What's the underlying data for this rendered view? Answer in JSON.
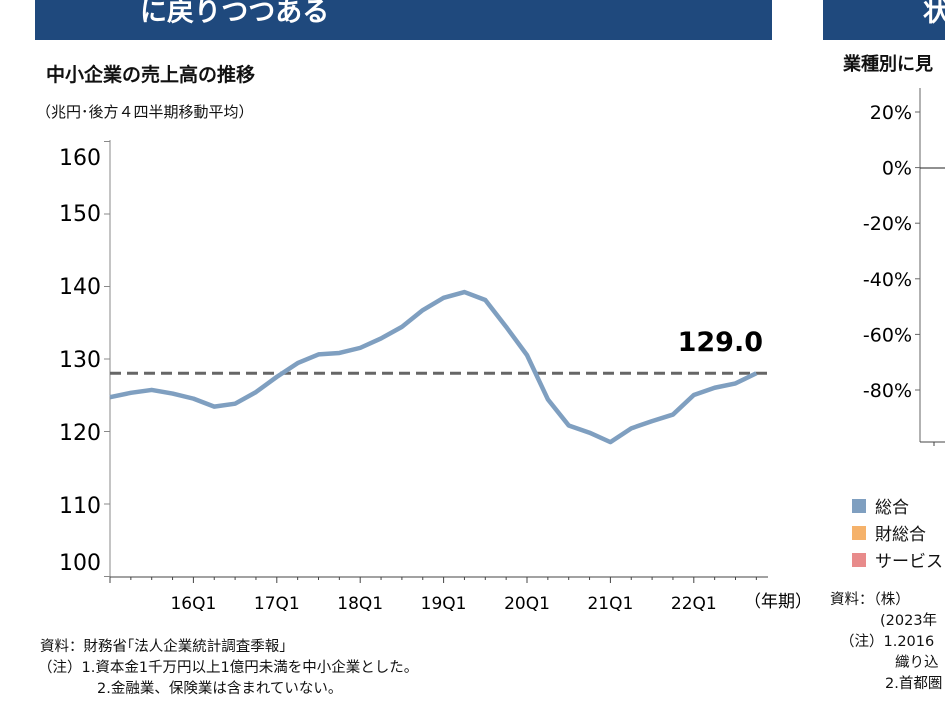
{
  "left_panel": {
    "header": "に戻りつつある",
    "title": "中小企業の売上高の推移",
    "unit": "（兆円･後方４四半期移動平均）",
    "notes": [
      "資料：財務省｢法人企業統計調査季報｣",
      "（注）1.資本金1千万円以上1億円未満を中小企業とした。",
      "2.金融業、保険業は含まれていない。"
    ]
  },
  "right_panel": {
    "header": "状",
    "title": "業種別に見",
    "legend": [
      {
        "label": "総合",
        "color": "#7f9fc0"
      },
      {
        "label": "財総合",
        "color": "#f5b26b"
      },
      {
        "label": "サービス",
        "color": "#e88b8b"
      }
    ],
    "notes": [
      "資料：（株）",
      "(2023年",
      "（注）1.2016",
      "織り込",
      "2.首都圏"
    ]
  },
  "chart_data": [
    {
      "type": "line",
      "title": "中小企業の売上高の推移",
      "ylabel": "（兆円･後方４四半期移動平均）",
      "xlabel": "（年期）",
      "ylim": [
        100,
        160
      ],
      "yticks": [
        100,
        110,
        120,
        130,
        140,
        150,
        160
      ],
      "xtick_labels": [
        "16Q1",
        "17Q1",
        "18Q1",
        "19Q1",
        "20Q1",
        "21Q1",
        "22Q1"
      ],
      "x": [
        "15Q1",
        "15Q2",
        "15Q3",
        "15Q4",
        "16Q1",
        "16Q2",
        "16Q3",
        "16Q4",
        "17Q1",
        "17Q2",
        "17Q3",
        "17Q4",
        "18Q1",
        "18Q2",
        "18Q3",
        "18Q4",
        "19Q1",
        "19Q2",
        "19Q3",
        "19Q4",
        "20Q1",
        "20Q2",
        "20Q3",
        "20Q4",
        "21Q1",
        "21Q2",
        "21Q3",
        "21Q4",
        "22Q1",
        "22Q2",
        "22Q3",
        "22Q4"
      ],
      "values": [
        125.7,
        126.3,
        126.7,
        126.2,
        125.5,
        124.4,
        124.8,
        126.4,
        128.5,
        130.4,
        131.6,
        131.8,
        132.5,
        133.8,
        135.4,
        137.7,
        139.4,
        140.2,
        139.1,
        135.4,
        131.5,
        125.4,
        121.8,
        120.8,
        119.5,
        121.4,
        122.4,
        123.3,
        126.0,
        127.0,
        127.6,
        129.0
      ],
      "reference_line": {
        "value": 129.0,
        "style": "dashed",
        "label": "129.0"
      },
      "line_color": "#7f9fc0",
      "grid": false
    },
    {
      "type": "line",
      "title": "業種別に見",
      "yticks": [
        "20%",
        "0%",
        "-20%",
        "-40%",
        "-60%",
        "-80%"
      ],
      "ylim": [
        -100,
        27
      ],
      "legend": [
        "総合",
        "財総合",
        "サービス"
      ],
      "legend_placement": "bottom"
    }
  ]
}
